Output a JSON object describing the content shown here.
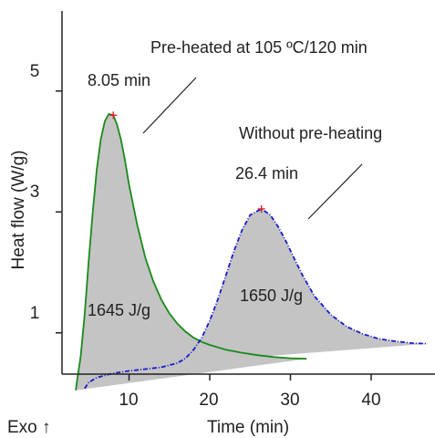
{
  "chart_data": {
    "type": "area",
    "xlabel": "Time (min)",
    "ylabel": "Heat flow (W/g)",
    "xlim": [
      0,
      47
    ],
    "ylim": [
      0,
      6.2
    ],
    "x_ticks": [
      10,
      20,
      30,
      40
    ],
    "y_ticks": [
      1,
      3,
      5
    ],
    "corner_label": "Exo ↑",
    "grid": false,
    "colors": {
      "preheated": "#1a8a1a",
      "without": "#1a1acc",
      "fill": "#c4c4c4",
      "peak_marker": "#e02020"
    },
    "series": [
      {
        "key": "preheated",
        "x": [
          3.4,
          3.6,
          4.0,
          4.5,
          5.0,
          5.5,
          6.0,
          6.5,
          7.0,
          7.5,
          8.05,
          8.5,
          9.0,
          9.5,
          10,
          11,
          12,
          13,
          14,
          15,
          16,
          17,
          18,
          19,
          20,
          22,
          24,
          26,
          28,
          30,
          32
        ],
        "y": [
          0.05,
          0.25,
          0.6,
          1.3,
          2.2,
          3.0,
          3.7,
          4.2,
          4.5,
          4.62,
          4.6,
          4.45,
          4.2,
          3.85,
          3.45,
          2.8,
          2.25,
          1.85,
          1.55,
          1.32,
          1.15,
          1.02,
          0.92,
          0.85,
          0.8,
          0.72,
          0.67,
          0.63,
          0.6,
          0.58,
          0.57
        ],
        "baseline_x": [
          3.4,
          32
        ],
        "baseline_y": [
          0.05,
          0.57
        ]
      },
      {
        "key": "without",
        "x": [
          4.5,
          5,
          6,
          8,
          10,
          12,
          14,
          16,
          17,
          18,
          19,
          20,
          21,
          22,
          23,
          24,
          25,
          26.4,
          27.5,
          28.5,
          29.5,
          30.5,
          31.5,
          33,
          35,
          37,
          39,
          41,
          43,
          45,
          47
        ],
        "y": [
          0.08,
          0.18,
          0.26,
          0.33,
          0.37,
          0.4,
          0.43,
          0.5,
          0.58,
          0.72,
          0.92,
          1.2,
          1.55,
          1.95,
          2.35,
          2.7,
          2.95,
          3.05,
          2.95,
          2.75,
          2.5,
          2.22,
          1.95,
          1.6,
          1.3,
          1.1,
          0.98,
          0.9,
          0.86,
          0.83,
          0.82
        ],
        "baseline_x": [
          16,
          47
        ],
        "baseline_y": [
          0.5,
          0.82
        ]
      }
    ],
    "peaks": [
      {
        "series": "preheated",
        "x": 8.05,
        "y": 4.6
      },
      {
        "series": "without",
        "x": 26.4,
        "y": 3.05
      }
    ],
    "annotations": {
      "preheated_label": "Pre-heated at 105 ºC/120 min",
      "without_label": "Without pre-heating",
      "preheated_peak": "8.05 min",
      "without_peak": "26.4 min",
      "preheated_enthalpy": "1645 J/g",
      "without_enthalpy": "1650 J/g"
    }
  }
}
